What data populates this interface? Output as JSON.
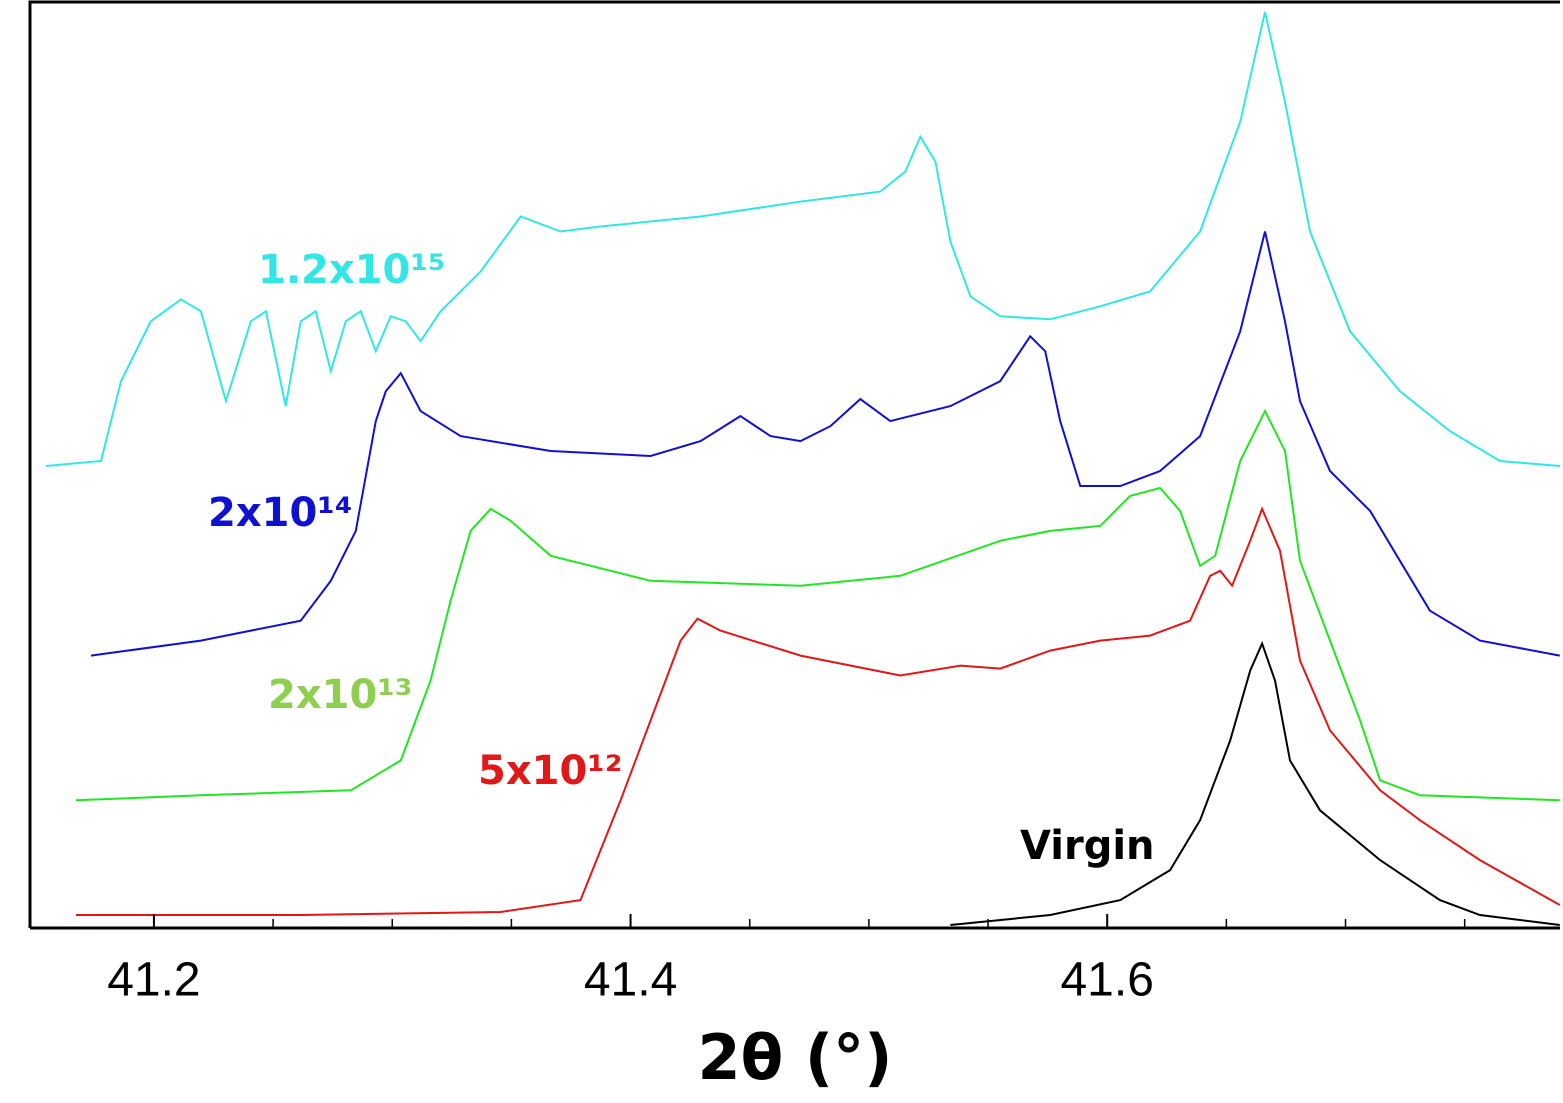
{
  "chart_data": {
    "type": "line",
    "xlabel": "2θ (°)",
    "xlim": [
      41.148,
      41.79
    ],
    "xticks": [
      41.2,
      41.4,
      41.6
    ],
    "xticks_minor": [
      41.25,
      41.3,
      41.35,
      41.45,
      41.5,
      41.55,
      41.65,
      41.7,
      41.75
    ],
    "ylim": [
      0,
      928
    ],
    "series": [
      {
        "name": "1.2x10¹⁵",
        "color": "#33e6e6",
        "label_color": "#33e6e6",
        "x": [
          41.1547,
          41.1778,
          41.1862,
          41.1987,
          41.2113,
          41.2197,
          41.2302,
          41.2407,
          41.247,
          41.2553,
          41.2616,
          41.2679,
          41.2742,
          41.2805,
          41.2868,
          41.2931,
          41.2994,
          41.3057,
          41.3119,
          41.3203,
          41.3371,
          41.3539,
          41.3706,
          41.3874,
          41.4294,
          41.4713,
          41.5048,
          41.5153,
          41.5216,
          41.5279,
          41.5342,
          41.5426,
          41.5551,
          41.5761,
          41.5971,
          41.618,
          41.639,
          41.6558,
          41.6662,
          41.6746,
          41.6851,
          41.7019,
          41.7228,
          41.7438,
          41.7648,
          41.7899
        ],
        "values": [
          463,
          468,
          548,
          608,
          630,
          618,
          528,
          608,
          618,
          523,
          608,
          618,
          558,
          608,
          618,
          578,
          613,
          608,
          588,
          618,
          658,
          713,
          698,
          703,
          713,
          728,
          738,
          758,
          793,
          768,
          688,
          633,
          613,
          610,
          623,
          638,
          698,
          808,
          918,
          828,
          698,
          598,
          538,
          498,
          468,
          463
        ]
      },
      {
        "name": "2x10¹⁴",
        "color": "#1010d0",
        "label_color": "#1010d0",
        "x": [
          41.1736,
          41.2197,
          41.2616,
          41.2742,
          41.2847,
          41.2931,
          41.2973,
          41.3036,
          41.3119,
          41.3287,
          41.3665,
          41.4084,
          41.4294,
          41.4461,
          41.4587,
          41.4713,
          41.4839,
          41.4964,
          41.509,
          41.5342,
          41.5551,
          41.5677,
          41.574,
          41.5803,
          41.5887,
          41.6055,
          41.6222,
          41.639,
          41.6558,
          41.6662,
          41.6746,
          41.6809,
          41.6935,
          41.7103,
          41.7228,
          41.7354,
          41.7564,
          41.7899
        ],
        "values": [
          273,
          288,
          308,
          348,
          398,
          508,
          538,
          556,
          518,
          493,
          478,
          473,
          488,
          513,
          493,
          488,
          503,
          530,
          508,
          523,
          548,
          593,
          578,
          508,
          443,
          443,
          458,
          493,
          598,
          698,
          608,
          528,
          458,
          418,
          368,
          318,
          288,
          273
        ]
      },
      {
        "name": "2x10¹³",
        "color": "#22e622",
        "label_color": "#8fcf50",
        "x": [
          41.1673,
          41.2197,
          41.2826,
          41.3036,
          41.3161,
          41.3245,
          41.3329,
          41.3413,
          41.3497,
          41.3665,
          41.4084,
          41.4713,
          41.5132,
          41.5551,
          41.5761,
          41.5971,
          41.6096,
          41.6222,
          41.6306,
          41.639,
          41.6453,
          41.6558,
          41.6662,
          41.6746,
          41.6809,
          41.6935,
          41.7061,
          41.7145,
          41.7312,
          41.7899
        ],
        "values": [
          128,
          133,
          138,
          168,
          248,
          328,
          398,
          420,
          408,
          373,
          348,
          343,
          353,
          388,
          398,
          403,
          433,
          441,
          418,
          363,
          373,
          468,
          518,
          478,
          368,
          288,
          208,
          148,
          133,
          128
        ]
      },
      {
        "name": "5x10¹²",
        "color": "#e01818",
        "label_color": "#e01818",
        "x": [
          41.1673,
          41.2616,
          41.3455,
          41.379,
          41.3958,
          41.4084,
          41.421,
          41.4281,
          41.4377,
          41.4713,
          41.5132,
          41.5384,
          41.5551,
          41.5761,
          41.5971,
          41.618,
          41.6348,
          41.6432,
          41.6474,
          41.6524,
          41.66,
          41.665,
          41.6725,
          41.6809,
          41.6935,
          41.7145,
          41.7312,
          41.7564,
          41.7899
        ],
        "values": [
          13,
          13,
          16,
          28,
          128,
          208,
          288,
          310,
          298,
          273,
          253,
          263,
          260,
          278,
          288,
          293,
          308,
          353,
          358,
          343,
          388,
          420,
          378,
          268,
          198,
          138,
          108,
          68,
          23
        ]
      },
      {
        "name": "Virgin",
        "color": "#000000",
        "label_color": "#000000",
        "x": [
          41.5342,
          41.5761,
          41.6055,
          41.6264,
          41.639,
          41.6516,
          41.66,
          41.665,
          41.6704,
          41.6767,
          41.6893,
          41.7145,
          41.7396,
          41.7564,
          41.7899
        ],
        "values": [
          3,
          13,
          28,
          58,
          108,
          188,
          258,
          285,
          248,
          168,
          118,
          68,
          28,
          13,
          3
        ]
      }
    ]
  }
}
